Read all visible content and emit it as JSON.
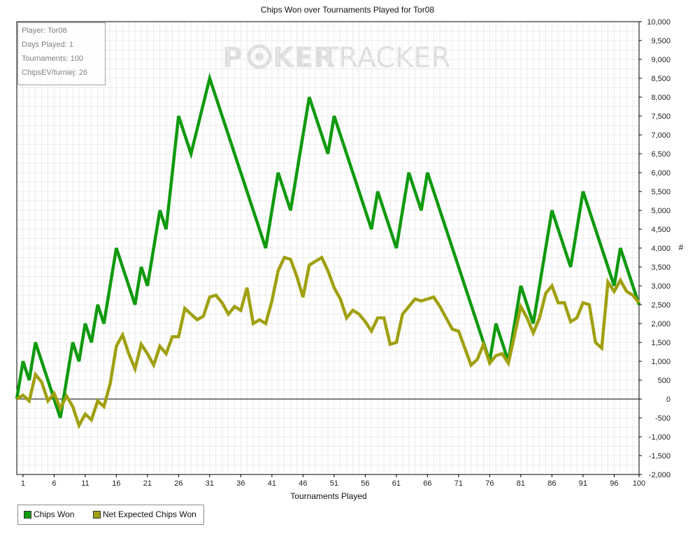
{
  "chart_data": {
    "type": "line",
    "title": "Chips Won over Tournaments Played for Tor08",
    "xlabel": "Tournaments Played",
    "ylabel": "#",
    "xlim": [
      0,
      100
    ],
    "ylim": [
      -2000,
      10000
    ],
    "x_ticks": [
      1,
      6,
      11,
      16,
      21,
      26,
      31,
      36,
      41,
      46,
      51,
      56,
      61,
      66,
      71,
      76,
      81,
      86,
      91,
      96,
      100
    ],
    "y_ticks": [
      {
        "value": 10000,
        "label": "10,000"
      },
      {
        "value": 9500,
        "label": "9,500"
      },
      {
        "value": 9000,
        "label": "9,000"
      },
      {
        "value": 8500,
        "label": "8,500"
      },
      {
        "value": 8000,
        "label": "8,000"
      },
      {
        "value": 7500,
        "label": "7,500"
      },
      {
        "value": 7000,
        "label": "7,000"
      },
      {
        "value": 6500,
        "label": "6,500"
      },
      {
        "value": 6000,
        "label": "6,000"
      },
      {
        "value": 5500,
        "label": "5,500"
      },
      {
        "value": 5000,
        "label": "5,000"
      },
      {
        "value": 4500,
        "label": "4,500"
      },
      {
        "value": 4000,
        "label": "4,000"
      },
      {
        "value": 3500,
        "label": "3,500"
      },
      {
        "value": 3000,
        "label": "3,000"
      },
      {
        "value": 2500,
        "label": "2,500"
      },
      {
        "value": 2000,
        "label": "2,000"
      },
      {
        "value": 1500,
        "label": "1,500"
      },
      {
        "value": 1000,
        "label": "1,000"
      },
      {
        "value": 500,
        "label": "500"
      },
      {
        "value": 0,
        "label": "0"
      },
      {
        "value": -500,
        "label": "-500"
      },
      {
        "value": -1000,
        "label": "-1,000"
      },
      {
        "value": -1500,
        "label": "-1,500"
      },
      {
        "value": -2000,
        "label": "-2,000"
      }
    ],
    "grid": true,
    "legend_position": "bottom-left",
    "series": [
      {
        "name": "Chips Won",
        "color": "#0f9a0f",
        "points": [
          [
            0,
            0
          ],
          [
            1,
            1000
          ],
          [
            2,
            500
          ],
          [
            3,
            1500
          ],
          [
            7,
            -500
          ],
          [
            9,
            1500
          ],
          [
            10,
            1000
          ],
          [
            11,
            2000
          ],
          [
            12,
            1500
          ],
          [
            13,
            2500
          ],
          [
            14,
            2000
          ],
          [
            16,
            4000
          ],
          [
            19,
            2500
          ],
          [
            20,
            3500
          ],
          [
            21,
            3000
          ],
          [
            23,
            5000
          ],
          [
            24,
            4500
          ],
          [
            26,
            7500
          ],
          [
            28,
            6500
          ],
          [
            31,
            8500
          ],
          [
            40,
            4000
          ],
          [
            42,
            6000
          ],
          [
            44,
            5000
          ],
          [
            47,
            8000
          ],
          [
            50,
            6500
          ],
          [
            51,
            7500
          ],
          [
            57,
            4500
          ],
          [
            58,
            5500
          ],
          [
            61,
            4000
          ],
          [
            63,
            6000
          ],
          [
            65,
            5000
          ],
          [
            66,
            6000
          ],
          [
            76,
            1000
          ],
          [
            77,
            2000
          ],
          [
            79,
            1000
          ],
          [
            81,
            3000
          ],
          [
            83,
            2000
          ],
          [
            86,
            5000
          ],
          [
            89,
            3500
          ],
          [
            91,
            5500
          ],
          [
            96,
            3000
          ],
          [
            97,
            4000
          ],
          [
            100,
            2500
          ]
        ]
      },
      {
        "name": "Net Expected Chips Won",
        "color": "#a0a010",
        "points": [
          [
            0,
            0
          ],
          [
            1,
            100
          ],
          [
            2,
            -50
          ],
          [
            3,
            650
          ],
          [
            4,
            450
          ],
          [
            5,
            -50
          ],
          [
            6,
            150
          ],
          [
            7,
            -250
          ],
          [
            8,
            80
          ],
          [
            9,
            -200
          ],
          [
            10,
            -700
          ],
          [
            11,
            -400
          ],
          [
            12,
            -550
          ],
          [
            13,
            -50
          ],
          [
            14,
            -200
          ],
          [
            15,
            400
          ],
          [
            16,
            1400
          ],
          [
            17,
            1700
          ],
          [
            18,
            1200
          ],
          [
            19,
            800
          ],
          [
            20,
            1450
          ],
          [
            21,
            1200
          ],
          [
            22,
            900
          ],
          [
            23,
            1400
          ],
          [
            24,
            1200
          ],
          [
            25,
            1650
          ],
          [
            26,
            1650
          ],
          [
            27,
            2400
          ],
          [
            28,
            2250
          ],
          [
            29,
            2100
          ],
          [
            30,
            2200
          ],
          [
            31,
            2700
          ],
          [
            32,
            2750
          ],
          [
            33,
            2550
          ],
          [
            34,
            2250
          ],
          [
            35,
            2450
          ],
          [
            36,
            2350
          ],
          [
            37,
            2950
          ],
          [
            38,
            2000
          ],
          [
            39,
            2100
          ],
          [
            40,
            2000
          ],
          [
            41,
            2600
          ],
          [
            42,
            3400
          ],
          [
            43,
            3750
          ],
          [
            44,
            3700
          ],
          [
            45,
            3250
          ],
          [
            46,
            2700
          ],
          [
            47,
            3550
          ],
          [
            48,
            3650
          ],
          [
            49,
            3750
          ],
          [
            50,
            3400
          ],
          [
            51,
            2950
          ],
          [
            52,
            2650
          ],
          [
            53,
            2150
          ],
          [
            54,
            2350
          ],
          [
            55,
            2250
          ],
          [
            56,
            2050
          ],
          [
            57,
            1800
          ],
          [
            58,
            2150
          ],
          [
            59,
            2150
          ],
          [
            60,
            1450
          ],
          [
            61,
            1500
          ],
          [
            62,
            2250
          ],
          [
            63,
            2450
          ],
          [
            64,
            2650
          ],
          [
            65,
            2600
          ],
          [
            66,
            2650
          ],
          [
            67,
            2700
          ],
          [
            68,
            2450
          ],
          [
            69,
            2150
          ],
          [
            70,
            1850
          ],
          [
            71,
            1800
          ],
          [
            72,
            1350
          ],
          [
            73,
            900
          ],
          [
            74,
            1050
          ],
          [
            75,
            1450
          ],
          [
            76,
            950
          ],
          [
            77,
            1150
          ],
          [
            78,
            1200
          ],
          [
            79,
            950
          ],
          [
            80,
            1700
          ],
          [
            81,
            2450
          ],
          [
            82,
            2150
          ],
          [
            83,
            1750
          ],
          [
            84,
            2150
          ],
          [
            85,
            2800
          ],
          [
            86,
            3000
          ],
          [
            87,
            2550
          ],
          [
            88,
            2550
          ],
          [
            89,
            2050
          ],
          [
            90,
            2150
          ],
          [
            91,
            2550
          ],
          [
            92,
            2500
          ],
          [
            93,
            1500
          ],
          [
            94,
            1350
          ],
          [
            95,
            3100
          ],
          [
            96,
            2850
          ],
          [
            97,
            3150
          ],
          [
            98,
            2850
          ],
          [
            99,
            2750
          ],
          [
            100,
            2550
          ]
        ]
      }
    ]
  },
  "watermark": {
    "left": "P",
    "mid": "KER",
    "right": "TRACKER"
  },
  "info_box": {
    "player": "Player: Tor08",
    "days": "Days Played: 1",
    "tournaments": "Tournaments: 100",
    "chips_ev": "ChipsEV/turniej: 26"
  },
  "legend": {
    "items": [
      {
        "label": "Chips Won",
        "color": "#0f9a0f"
      },
      {
        "label": "Net Expected Chips Won",
        "color": "#a0a010"
      }
    ]
  }
}
